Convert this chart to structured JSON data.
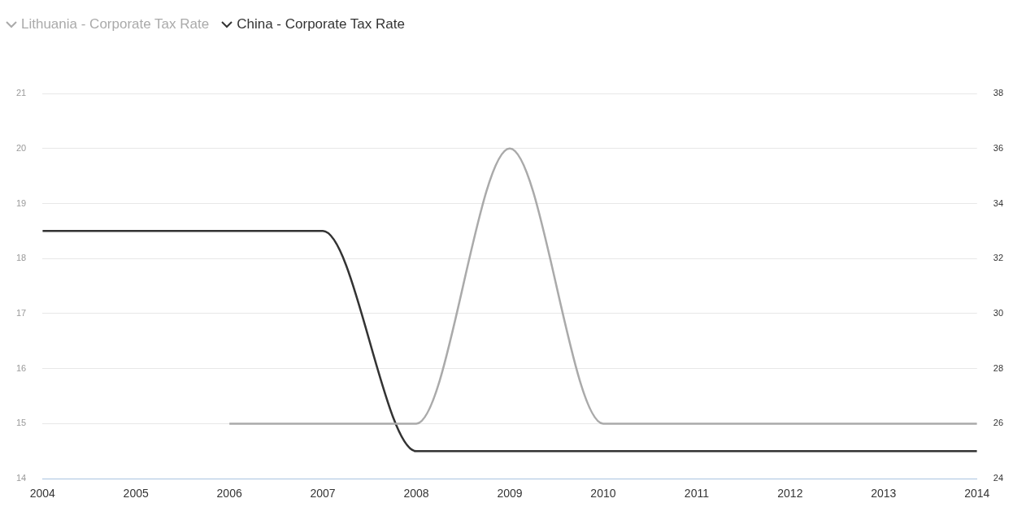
{
  "chart_data": {
    "type": "line",
    "x": [
      2004,
      2005,
      2006,
      2007,
      2008,
      2009,
      2010,
      2011,
      2012,
      2013,
      2014
    ],
    "series": [
      {
        "name": "Lithuania - Corporate Tax Rate",
        "color": "#aaaaaa",
        "values": [
          null,
          null,
          15,
          15,
          15,
          20,
          15,
          15,
          15,
          15,
          15
        ]
      },
      {
        "name": "China - Corporate Tax Rate",
        "color": "#333333",
        "axis": "y2",
        "values": [
          33,
          33,
          33,
          33,
          25,
          25,
          25,
          25,
          25,
          25,
          25
        ]
      }
    ],
    "xlim": [
      2004,
      2014
    ],
    "xticks": [
      2004,
      2005,
      2006,
      2007,
      2008,
      2009,
      2010,
      2011,
      2012,
      2013,
      2014
    ],
    "ylim": [
      14,
      21
    ],
    "yticks": [
      14,
      15,
      16,
      17,
      18,
      19,
      20,
      21
    ],
    "y2lim": [
      24,
      38
    ],
    "y2ticks": [
      24,
      26,
      28,
      30,
      32,
      34,
      36,
      38
    ],
    "grid": "y",
    "legend": "top left",
    "marker": "none",
    "line_style": "solid"
  }
}
